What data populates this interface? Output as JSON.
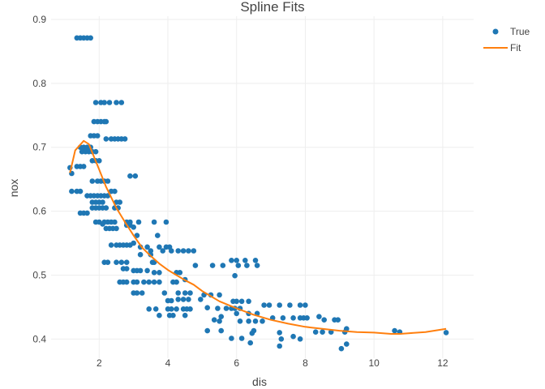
{
  "chart_data": {
    "type": "scatter",
    "title": "Spline Fits",
    "xlabel": "dis",
    "ylabel": "nox",
    "xlim": [
      0.6,
      12.9
    ],
    "ylim": [
      0.37,
      0.905
    ],
    "x_ticks": [
      2,
      4,
      6,
      8,
      10,
      12
    ],
    "y_ticks": [
      0.4,
      0.5,
      0.6,
      0.7,
      0.8,
      0.9
    ],
    "grid": true,
    "legend_position": "top-right",
    "series": [
      {
        "name": "True",
        "mode": "markers",
        "color": "#1f77b4",
        "points": [
          [
            1.35,
            0.871
          ],
          [
            1.45,
            0.871
          ],
          [
            1.55,
            0.871
          ],
          [
            1.65,
            0.871
          ],
          [
            1.75,
            0.871
          ],
          [
            1.9,
            0.77
          ],
          [
            2.05,
            0.77
          ],
          [
            2.15,
            0.77
          ],
          [
            2.3,
            0.77
          ],
          [
            2.5,
            0.77
          ],
          [
            2.65,
            0.77
          ],
          [
            1.85,
            0.74
          ],
          [
            1.95,
            0.74
          ],
          [
            2.05,
            0.74
          ],
          [
            2.15,
            0.74
          ],
          [
            2.2,
            0.74
          ],
          [
            1.75,
            0.718
          ],
          [
            1.85,
            0.718
          ],
          [
            1.95,
            0.718
          ],
          [
            2.2,
            0.713
          ],
          [
            2.35,
            0.713
          ],
          [
            2.45,
            0.713
          ],
          [
            2.55,
            0.713
          ],
          [
            2.65,
            0.713
          ],
          [
            2.75,
            0.713
          ],
          [
            1.45,
            0.7
          ],
          [
            1.55,
            0.7
          ],
          [
            1.65,
            0.7
          ],
          [
            1.75,
            0.7
          ],
          [
            1.5,
            0.693
          ],
          [
            1.6,
            0.693
          ],
          [
            1.7,
            0.693
          ],
          [
            1.8,
            0.693
          ],
          [
            1.9,
            0.693
          ],
          [
            1.8,
            0.679
          ],
          [
            1.9,
            0.679
          ],
          [
            2.0,
            0.679
          ],
          [
            1.15,
            0.668
          ],
          [
            1.35,
            0.67
          ],
          [
            1.45,
            0.67
          ],
          [
            1.55,
            0.67
          ],
          [
            1.2,
            0.659
          ],
          [
            2.9,
            0.655
          ],
          [
            3.05,
            0.655
          ],
          [
            1.8,
            0.647
          ],
          [
            1.95,
            0.647
          ],
          [
            2.05,
            0.647
          ],
          [
            2.15,
            0.647
          ],
          [
            2.25,
            0.647
          ],
          [
            2.35,
            0.631
          ],
          [
            2.45,
            0.631
          ],
          [
            1.2,
            0.631
          ],
          [
            1.35,
            0.631
          ],
          [
            1.45,
            0.631
          ],
          [
            1.65,
            0.624
          ],
          [
            1.75,
            0.624
          ],
          [
            1.85,
            0.624
          ],
          [
            1.95,
            0.624
          ],
          [
            2.05,
            0.624
          ],
          [
            2.15,
            0.624
          ],
          [
            2.25,
            0.624
          ],
          [
            1.8,
            0.614
          ],
          [
            1.9,
            0.614
          ],
          [
            2.0,
            0.614
          ],
          [
            2.1,
            0.614
          ],
          [
            2.5,
            0.614
          ],
          [
            2.6,
            0.614
          ],
          [
            2.45,
            0.605
          ],
          [
            2.55,
            0.605
          ],
          [
            1.8,
            0.605
          ],
          [
            1.9,
            0.605
          ],
          [
            2.0,
            0.605
          ],
          [
            2.1,
            0.605
          ],
          [
            2.2,
            0.605
          ],
          [
            1.45,
            0.597
          ],
          [
            1.55,
            0.597
          ],
          [
            1.65,
            0.597
          ],
          [
            1.9,
            0.583
          ],
          [
            2.0,
            0.583
          ],
          [
            2.15,
            0.583
          ],
          [
            2.25,
            0.583
          ],
          [
            2.35,
            0.583
          ],
          [
            2.45,
            0.583
          ],
          [
            2.8,
            0.583
          ],
          [
            2.9,
            0.583
          ],
          [
            3.15,
            0.583
          ],
          [
            3.6,
            0.583
          ],
          [
            3.95,
            0.583
          ],
          [
            2.1,
            0.58
          ],
          [
            2.8,
            0.578
          ],
          [
            2.9,
            0.578
          ],
          [
            2.2,
            0.573
          ],
          [
            2.3,
            0.573
          ],
          [
            2.4,
            0.573
          ],
          [
            2.5,
            0.573
          ],
          [
            3.0,
            0.575
          ],
          [
            3.1,
            0.562
          ],
          [
            3.7,
            0.562
          ],
          [
            2.35,
            0.547
          ],
          [
            2.5,
            0.547
          ],
          [
            2.6,
            0.547
          ],
          [
            2.7,
            0.547
          ],
          [
            2.8,
            0.547
          ],
          [
            2.9,
            0.547
          ],
          [
            3.0,
            0.55
          ],
          [
            3.2,
            0.544
          ],
          [
            3.4,
            0.544
          ],
          [
            3.5,
            0.538
          ],
          [
            3.75,
            0.544
          ],
          [
            3.95,
            0.544
          ],
          [
            4.05,
            0.544
          ],
          [
            3.85,
            0.538
          ],
          [
            4.1,
            0.538
          ],
          [
            4.3,
            0.538
          ],
          [
            4.45,
            0.538
          ],
          [
            4.6,
            0.538
          ],
          [
            4.75,
            0.538
          ],
          [
            3.2,
            0.532
          ],
          [
            3.5,
            0.532
          ],
          [
            2.15,
            0.52
          ],
          [
            2.25,
            0.52
          ],
          [
            2.5,
            0.52
          ],
          [
            2.65,
            0.52
          ],
          [
            2.8,
            0.52
          ],
          [
            3.55,
            0.52
          ],
          [
            3.6,
            0.52
          ],
          [
            2.7,
            0.51
          ],
          [
            2.8,
            0.51
          ],
          [
            3.0,
            0.507
          ],
          [
            3.1,
            0.507
          ],
          [
            3.2,
            0.507
          ],
          [
            3.4,
            0.507
          ],
          [
            3.6,
            0.504
          ],
          [
            3.75,
            0.504
          ],
          [
            4.25,
            0.504
          ],
          [
            4.35,
            0.504
          ],
          [
            4.8,
            0.515
          ],
          [
            2.6,
            0.489
          ],
          [
            2.7,
            0.489
          ],
          [
            2.8,
            0.489
          ],
          [
            3.0,
            0.489
          ],
          [
            3.1,
            0.489
          ],
          [
            3.3,
            0.489
          ],
          [
            3.45,
            0.489
          ],
          [
            3.6,
            0.489
          ],
          [
            3.75,
            0.489
          ],
          [
            4.15,
            0.489
          ],
          [
            4.25,
            0.489
          ],
          [
            4.5,
            0.493
          ],
          [
            3.0,
            0.472
          ],
          [
            3.1,
            0.472
          ],
          [
            3.25,
            0.472
          ],
          [
            3.9,
            0.472
          ],
          [
            4.3,
            0.472
          ],
          [
            4.5,
            0.472
          ],
          [
            4.65,
            0.472
          ],
          [
            4.0,
            0.46
          ],
          [
            4.1,
            0.46
          ],
          [
            4.3,
            0.462
          ],
          [
            4.45,
            0.462
          ],
          [
            4.6,
            0.462
          ],
          [
            4.95,
            0.462
          ],
          [
            3.45,
            0.447
          ],
          [
            3.65,
            0.447
          ],
          [
            4.0,
            0.447
          ],
          [
            4.1,
            0.447
          ],
          [
            4.25,
            0.447
          ],
          [
            4.45,
            0.447
          ],
          [
            4.55,
            0.447
          ],
          [
            4.65,
            0.447
          ],
          [
            3.75,
            0.437
          ],
          [
            4.05,
            0.437
          ],
          [
            4.15,
            0.437
          ],
          [
            4.5,
            0.437
          ],
          [
            5.3,
            0.515
          ],
          [
            5.6,
            0.515
          ],
          [
            5.85,
            0.523
          ],
          [
            6.0,
            0.523
          ],
          [
            6.05,
            0.515
          ],
          [
            6.25,
            0.523
          ],
          [
            6.3,
            0.515
          ],
          [
            6.55,
            0.523
          ],
          [
            6.6,
            0.515
          ],
          [
            5.95,
            0.499
          ],
          [
            5.05,
            0.469
          ],
          [
            5.25,
            0.469
          ],
          [
            5.5,
            0.469
          ],
          [
            5.15,
            0.449
          ],
          [
            5.45,
            0.448
          ],
          [
            5.7,
            0.448
          ],
          [
            5.85,
            0.448
          ],
          [
            5.95,
            0.448
          ],
          [
            6.1,
            0.448
          ],
          [
            5.9,
            0.459
          ],
          [
            6.0,
            0.459
          ],
          [
            6.15,
            0.459
          ],
          [
            6.35,
            0.459
          ],
          [
            5.35,
            0.43
          ],
          [
            5.55,
            0.435
          ],
          [
            6.0,
            0.44
          ],
          [
            6.35,
            0.44
          ],
          [
            6.6,
            0.44
          ],
          [
            5.5,
            0.428
          ],
          [
            6.1,
            0.428
          ],
          [
            6.35,
            0.428
          ],
          [
            6.55,
            0.428
          ],
          [
            6.75,
            0.428
          ],
          [
            5.15,
            0.413
          ],
          [
            5.55,
            0.413
          ],
          [
            6.5,
            0.413
          ],
          [
            6.45,
            0.409
          ],
          [
            5.85,
            0.401
          ],
          [
            6.15,
            0.401
          ],
          [
            6.4,
            0.394
          ],
          [
            6.8,
            0.453
          ],
          [
            6.95,
            0.453
          ],
          [
            7.25,
            0.453
          ],
          [
            7.55,
            0.453
          ],
          [
            7.85,
            0.453
          ],
          [
            8.0,
            0.453
          ],
          [
            7.05,
            0.433
          ],
          [
            7.35,
            0.433
          ],
          [
            7.65,
            0.433
          ],
          [
            7.85,
            0.433
          ],
          [
            7.95,
            0.433
          ],
          [
            8.05,
            0.433
          ],
          [
            7.25,
            0.41
          ],
          [
            7.3,
            0.4
          ],
          [
            7.25,
            0.389
          ],
          [
            7.65,
            0.404
          ],
          [
            7.85,
            0.4
          ],
          [
            8.3,
            0.411
          ],
          [
            8.5,
            0.411
          ],
          [
            8.4,
            0.435
          ],
          [
            8.55,
            0.43
          ],
          [
            8.85,
            0.43
          ],
          [
            8.95,
            0.43
          ],
          [
            8.75,
            0.411
          ],
          [
            9.15,
            0.411
          ],
          [
            9.2,
            0.416
          ],
          [
            9.05,
            0.385
          ],
          [
            9.2,
            0.392
          ],
          [
            10.6,
            0.413
          ],
          [
            10.75,
            0.411
          ],
          [
            12.1,
            0.41
          ]
        ]
      },
      {
        "name": "Fit",
        "mode": "lines",
        "color": "#ff7f0e",
        "points": [
          [
            1.15,
            0.66
          ],
          [
            1.3,
            0.695
          ],
          [
            1.55,
            0.71
          ],
          [
            1.7,
            0.705
          ],
          [
            1.85,
            0.685
          ],
          [
            2.0,
            0.665
          ],
          [
            2.2,
            0.638
          ],
          [
            2.5,
            0.605
          ],
          [
            2.75,
            0.583
          ],
          [
            3.0,
            0.562
          ],
          [
            3.25,
            0.543
          ],
          [
            3.5,
            0.53
          ],
          [
            3.75,
            0.518
          ],
          [
            4.0,
            0.508
          ],
          [
            4.25,
            0.5
          ],
          [
            4.5,
            0.492
          ],
          [
            4.75,
            0.485
          ],
          [
            5.0,
            0.475
          ],
          [
            5.5,
            0.459
          ],
          [
            6.0,
            0.448
          ],
          [
            6.5,
            0.438
          ],
          [
            7.0,
            0.43
          ],
          [
            7.5,
            0.424
          ],
          [
            8.0,
            0.419
          ],
          [
            8.5,
            0.416
          ],
          [
            9.0,
            0.413
          ],
          [
            9.5,
            0.411
          ],
          [
            10.0,
            0.41
          ],
          [
            10.5,
            0.408
          ],
          [
            10.75,
            0.408
          ],
          [
            11.0,
            0.409
          ],
          [
            11.5,
            0.411
          ],
          [
            12.1,
            0.416
          ]
        ]
      }
    ]
  }
}
